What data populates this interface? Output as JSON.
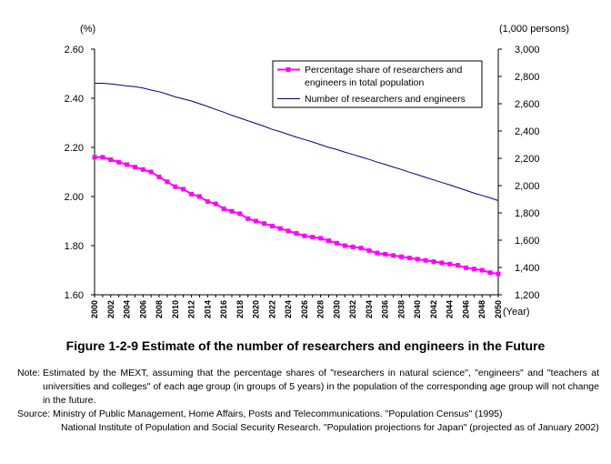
{
  "chart_data": {
    "type": "line",
    "title": "",
    "x": [
      2000,
      2001,
      2002,
      2003,
      2004,
      2005,
      2006,
      2007,
      2008,
      2009,
      2010,
      2011,
      2012,
      2013,
      2014,
      2015,
      2016,
      2017,
      2018,
      2019,
      2020,
      2021,
      2022,
      2023,
      2024,
      2025,
      2026,
      2027,
      2028,
      2029,
      2030,
      2031,
      2032,
      2033,
      2034,
      2035,
      2036,
      2037,
      2038,
      2039,
      2040,
      2041,
      2042,
      2043,
      2044,
      2045,
      2046,
      2047,
      2048,
      2049,
      2050
    ],
    "x_tick_labels": [
      "2000",
      "2002",
      "2004",
      "2006",
      "2008",
      "2010",
      "2012",
      "2014",
      "2016",
      "2018",
      "2020",
      "2022",
      "2024",
      "2026",
      "2028",
      "2030",
      "2032",
      "2034",
      "2036",
      "2038",
      "2040",
      "2042",
      "2044",
      "2046",
      "2048",
      "2050"
    ],
    "xlabel": "(Year)",
    "left_axis": {
      "unit_label": "(%)",
      "ylim": [
        1.6,
        2.6
      ],
      "tick_labels": [
        "1.60",
        "1.80",
        "2.00",
        "2.20",
        "2.40",
        "2.60"
      ]
    },
    "right_axis": {
      "unit_label": "(1,000 persons)",
      "ylim": [
        1200,
        3000
      ],
      "tick_labels": [
        "1,200",
        "1,400",
        "1,600",
        "1,800",
        "2,000",
        "2,200",
        "2,400",
        "2,600",
        "2,800",
        "3,000"
      ]
    },
    "series": [
      {
        "name": "Percentage share of researchers and engineers in total population",
        "name_lines": [
          "Percentage share of researchers and",
          "engineers in total population"
        ],
        "axis": "left",
        "color": "#ff00ff",
        "marker": "square",
        "values": [
          2.16,
          2.16,
          2.15,
          2.14,
          2.13,
          2.12,
          2.11,
          2.1,
          2.08,
          2.06,
          2.04,
          2.03,
          2.01,
          2.0,
          1.98,
          1.97,
          1.95,
          1.94,
          1.93,
          1.91,
          1.9,
          1.89,
          1.88,
          1.87,
          1.86,
          1.85,
          1.84,
          1.835,
          1.83,
          1.82,
          1.81,
          1.8,
          1.795,
          1.79,
          1.78,
          1.77,
          1.765,
          1.76,
          1.755,
          1.75,
          1.745,
          1.74,
          1.735,
          1.73,
          1.725,
          1.72,
          1.71,
          1.705,
          1.7,
          1.69,
          1.685
        ]
      },
      {
        "name": "Number of researchers and engineers",
        "axis": "right",
        "color": "#000080",
        "marker": "none",
        "values": [
          2750,
          2750,
          2745,
          2738,
          2730,
          2725,
          2715,
          2700,
          2688,
          2670,
          2650,
          2635,
          2620,
          2600,
          2580,
          2558,
          2538,
          2515,
          2495,
          2475,
          2455,
          2435,
          2412,
          2395,
          2375,
          2355,
          2338,
          2320,
          2300,
          2280,
          2265,
          2245,
          2228,
          2210,
          2192,
          2172,
          2155,
          2136,
          2118,
          2098,
          2080,
          2060,
          2042,
          2023,
          2005,
          1985,
          1965,
          1945,
          1928,
          1910,
          1890
        ]
      }
    ],
    "legend_placement": "top-right",
    "grid": false
  },
  "caption": "Figure 1-2-9  Estimate of the number of researchers and engineers in the Future",
  "notes": {
    "note_label": "Note:",
    "note_text": "Estimated by the MEXT, assuming that the percentage shares of \"researchers in natural science\", \"engineers\" and \"teachers at universities and colleges\" of each age group (in groups of 5 years) in the population of the corresponding age group will not change in the future.",
    "source_label": "Source:",
    "source_text": "Ministry of Public Management, Home Affairs, Posts and Telecommunications. \"Population Census\" (1995)",
    "source_text_2": "National Institute of Population and Social Security Research. \"Population projections for Japan\" (projected as of January 2002)"
  }
}
